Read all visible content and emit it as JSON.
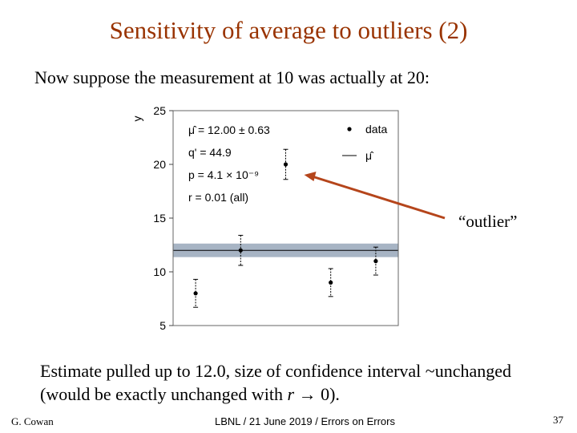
{
  "slide": {
    "title": "Sensitivity of average to outliers (2)",
    "intro": "Now suppose the measurement at 10 was actually at 20:",
    "outlier_label": "“outlier”",
    "summary_line1": "Estimate pulled up to 12.0, size of confidence interval ~unchanged",
    "summary_line2_pre": "(would be exactly unchanged with ",
    "summary_line2_var": "r",
    "summary_line2_post": " → 0).",
    "footer_left": "G. Cowan",
    "footer_mid": "LBNL / 21 June 2019 / Errors on Errors",
    "page_number": "37"
  },
  "chart_data": {
    "type": "scatter",
    "ylabel": "y",
    "ylim": [
      5,
      25
    ],
    "xlim": [
      0.5,
      5.5
    ],
    "yticks": [
      "5",
      "10",
      "15",
      "20",
      "25"
    ],
    "points": [
      {
        "x": 1,
        "y": 8.0,
        "err": 1.3
      },
      {
        "x": 2,
        "y": 12.0,
        "err": 1.4
      },
      {
        "x": 3,
        "y": 20.0,
        "err": 1.4
      },
      {
        "x": 4,
        "y": 9.0,
        "err": 1.3
      },
      {
        "x": 5,
        "y": 11.0,
        "err": 1.3
      }
    ],
    "mu_hat": 12.0,
    "mu_err": 0.63,
    "annotations": [
      "μ̂ = 12.00 ± 0.63",
      "q' = 44.9",
      "p = 4.1 × 10⁻⁹",
      "r = 0.01 (all)"
    ],
    "legend": [
      {
        "label": "data",
        "marker": "dot"
      },
      {
        "label": "μ̂",
        "marker": "line"
      }
    ],
    "colors": {
      "band": "#a7b4c4",
      "arrow": "#b5451b"
    }
  }
}
